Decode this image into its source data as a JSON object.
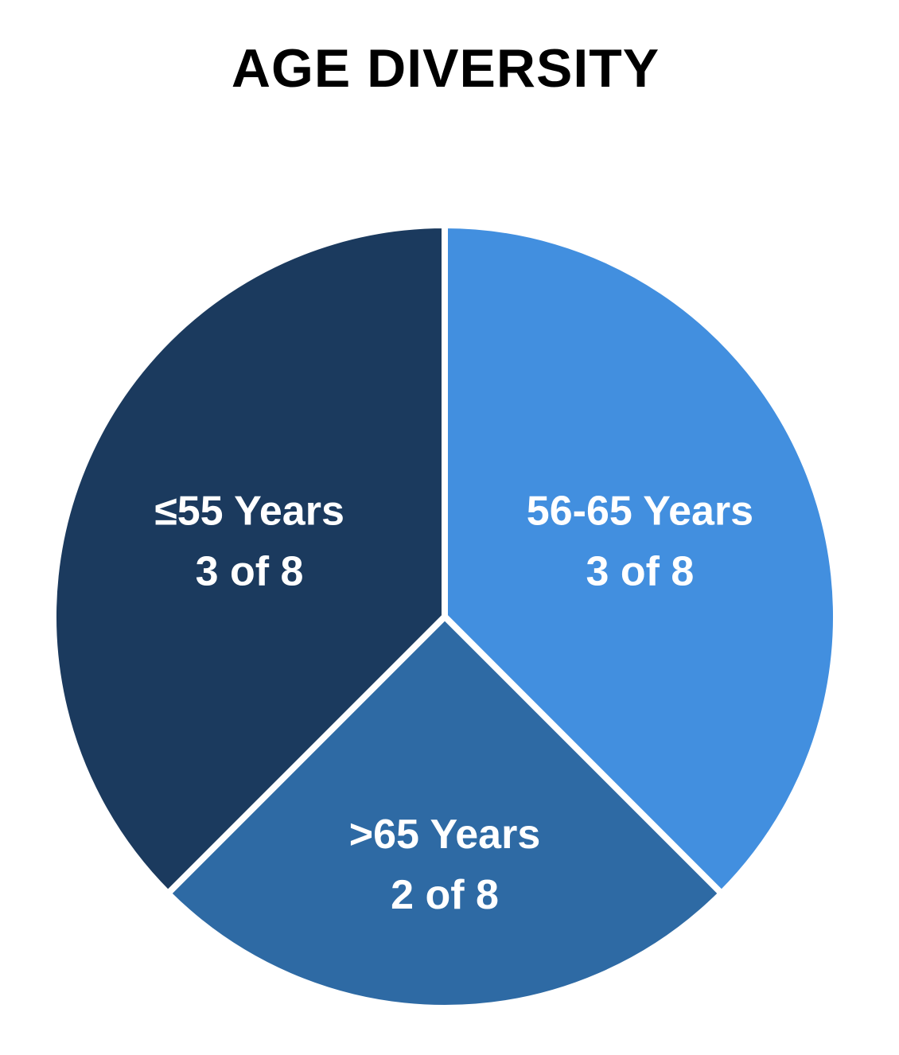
{
  "chart_data": {
    "type": "pie",
    "title": "AGE DIVERSITY",
    "slices": [
      {
        "name": "56-65 Years",
        "value": 3,
        "label": "3 of 8",
        "color": "#428fdf"
      },
      {
        "name": ">65 Years",
        "value": 2,
        "label": "2 of 8",
        "color": "#2e6aa4"
      },
      {
        "name": "≤55 Years",
        "value": 3,
        "label": "3 of 8",
        "color": "#1b3a5e"
      }
    ],
    "total": 8,
    "separator_color": "#ffffff"
  }
}
